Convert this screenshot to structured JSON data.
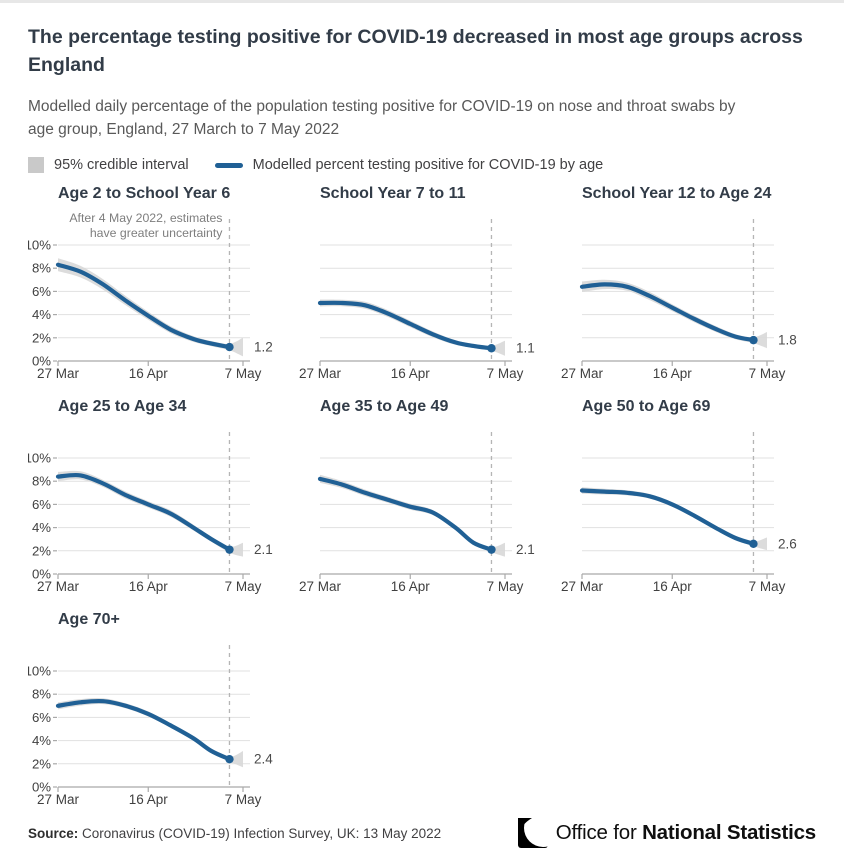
{
  "header": {
    "title": "The percentage testing positive for COVID-19 decreased in most age groups across England",
    "subtitle": "Modelled daily percentage of the population testing positive for COVID-19 on nose and throat swabs by age group, England, 27 March to 7 May 2022"
  },
  "legend": {
    "ci_label": "95% credible interval",
    "line_label": "Modelled percent testing positive for COVID-19 by age"
  },
  "annotation": {
    "line1": "After 4 May 2022, estimates",
    "line2": "have greater uncertainty"
  },
  "colors": {
    "line": "#206095",
    "band": "#d9d9d9",
    "grid": "#e1e1e1",
    "axis": "#a9a9a9",
    "dashed": "#b5b5b5",
    "tick_label": "#404040",
    "end_label": "#4a4a4a",
    "annotation": "#7e7e7e",
    "title": "#323c48"
  },
  "axes": {
    "y_tick_labels": [
      "0%",
      "2%",
      "4%",
      "6%",
      "8%",
      "10%"
    ],
    "x_tick_labels": [
      "27 Mar",
      "16 Apr",
      "7 May"
    ],
    "x_tick_days": [
      0,
      20,
      41
    ],
    "ylim": [
      0,
      10
    ],
    "dashed_line_day": 38,
    "dashed_line_date": "4 May"
  },
  "chart_data": [
    {
      "type": "line",
      "title": "Age 2 to School Year 6",
      "days_since_27_mar": [
        0,
        5,
        10,
        15,
        20,
        25,
        30,
        34,
        38
      ],
      "values_pct": [
        8.3,
        7.7,
        6.6,
        5.2,
        3.9,
        2.7,
        1.9,
        1.5,
        1.2
      ],
      "band_halfwidth": [
        0.55,
        0.5,
        0.45,
        0.4,
        0.35,
        0.3,
        0.25,
        0.22,
        0.28
      ],
      "fan": {
        "day": 41,
        "halfwidth": 0.8
      },
      "end_value": 1.2,
      "end_label": "1.2",
      "show_y_labels": true,
      "show_annotation": true
    },
    {
      "type": "line",
      "title": "School Year 7 to 11",
      "days_since_27_mar": [
        0,
        5,
        10,
        15,
        20,
        25,
        30,
        34,
        38
      ],
      "values_pct": [
        5.0,
        5.0,
        4.8,
        4.1,
        3.2,
        2.3,
        1.6,
        1.3,
        1.1
      ],
      "band_halfwidth": [
        0.3,
        0.28,
        0.3,
        0.3,
        0.28,
        0.25,
        0.2,
        0.18,
        0.22
      ],
      "fan": {
        "day": 41,
        "halfwidth": 0.65
      },
      "end_value": 1.1,
      "end_label": "1.1",
      "show_y_labels": false,
      "show_annotation": false
    },
    {
      "type": "line",
      "title": "School Year 12 to Age 24",
      "days_since_27_mar": [
        0,
        5,
        10,
        15,
        20,
        25,
        30,
        34,
        38
      ],
      "values_pct": [
        6.4,
        6.6,
        6.4,
        5.6,
        4.6,
        3.6,
        2.7,
        2.1,
        1.8
      ],
      "band_halfwidth": [
        0.45,
        0.4,
        0.35,
        0.35,
        0.3,
        0.28,
        0.25,
        0.22,
        0.26
      ],
      "fan": {
        "day": 41,
        "halfwidth": 0.7
      },
      "end_value": 1.8,
      "end_label": "1.8",
      "show_y_labels": false,
      "show_annotation": false
    },
    {
      "type": "line",
      "title": "Age 25 to Age 34",
      "days_since_27_mar": [
        0,
        5,
        10,
        15,
        20,
        25,
        30,
        34,
        38
      ],
      "values_pct": [
        8.4,
        8.5,
        7.8,
        6.8,
        6.0,
        5.2,
        4.0,
        3.0,
        2.1
      ],
      "band_halfwidth": [
        0.4,
        0.35,
        0.3,
        0.3,
        0.28,
        0.28,
        0.25,
        0.22,
        0.26
      ],
      "fan": {
        "day": 41,
        "halfwidth": 0.6
      },
      "end_value": 2.1,
      "end_label": "2.1",
      "show_y_labels": true,
      "show_annotation": false
    },
    {
      "type": "line",
      "title": "Age 35 to Age 49",
      "days_since_27_mar": [
        0,
        5,
        10,
        15,
        20,
        25,
        30,
        34,
        38
      ],
      "values_pct": [
        8.2,
        7.7,
        7.0,
        6.4,
        5.8,
        5.3,
        4.0,
        2.7,
        2.1
      ],
      "band_halfwidth": [
        0.35,
        0.3,
        0.28,
        0.25,
        0.25,
        0.22,
        0.2,
        0.18,
        0.22
      ],
      "fan": {
        "day": 41,
        "halfwidth": 0.6
      },
      "end_value": 2.1,
      "end_label": "2.1",
      "show_y_labels": false,
      "show_annotation": false
    },
    {
      "type": "line",
      "title": "Age 50 to Age 69",
      "days_since_27_mar": [
        0,
        5,
        10,
        15,
        20,
        25,
        30,
        34,
        38
      ],
      "values_pct": [
        7.2,
        7.1,
        7.0,
        6.7,
        6.0,
        5.0,
        3.9,
        3.1,
        2.6
      ],
      "band_halfwidth": [
        0.28,
        0.25,
        0.22,
        0.2,
        0.2,
        0.2,
        0.18,
        0.16,
        0.2
      ],
      "fan": {
        "day": 41,
        "halfwidth": 0.55
      },
      "end_value": 2.6,
      "end_label": "2.6",
      "show_y_labels": false,
      "show_annotation": false
    },
    {
      "type": "line",
      "title": "Age 70+",
      "days_since_27_mar": [
        0,
        5,
        10,
        15,
        20,
        25,
        30,
        34,
        38
      ],
      "values_pct": [
        7.0,
        7.3,
        7.4,
        7.0,
        6.3,
        5.3,
        4.2,
        3.1,
        2.4
      ],
      "band_halfwidth": [
        0.3,
        0.28,
        0.25,
        0.22,
        0.22,
        0.2,
        0.18,
        0.16,
        0.2
      ],
      "fan": {
        "day": 41,
        "halfwidth": 0.7
      },
      "end_value": 2.4,
      "end_label": "2.4",
      "show_y_labels": true,
      "show_annotation": false
    }
  ],
  "footer": {
    "source_label": "Source:",
    "source_text": " Coronavirus (COVID-19) Infection Survey, UK: 13 May 2022",
    "logo_office": "Office for ",
    "logo_ns": "National Statistics"
  }
}
